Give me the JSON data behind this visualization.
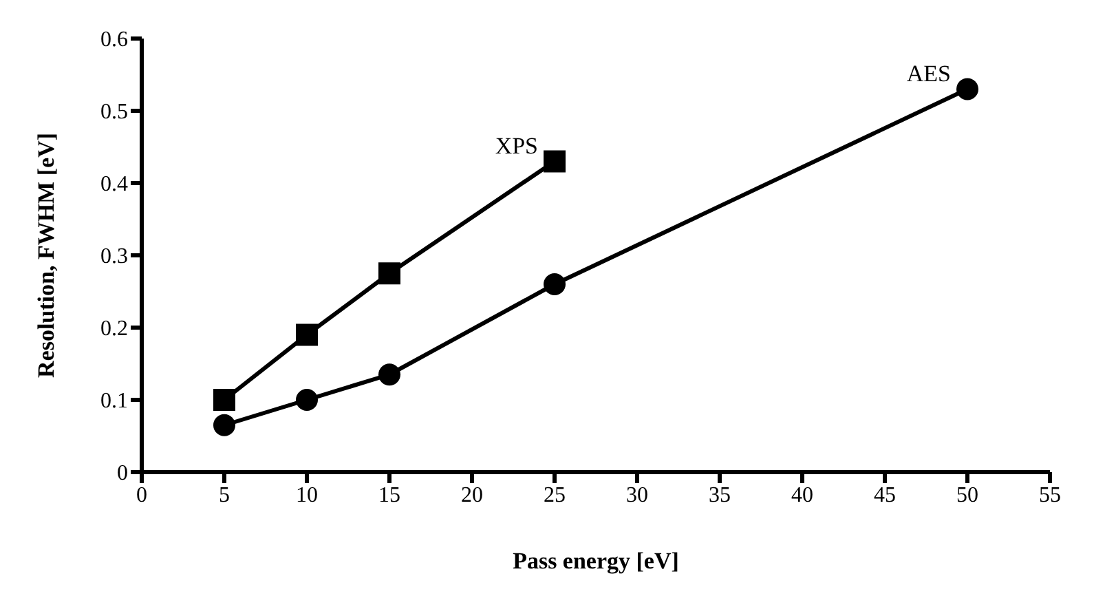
{
  "chart_data": {
    "type": "line",
    "xlabel": "Pass energy [eV]",
    "ylabel": "Resolution, FWHM [eV]",
    "xlim": [
      0,
      55
    ],
    "xticks": [
      0,
      5,
      10,
      15,
      20,
      25,
      30,
      35,
      40,
      45,
      50,
      55
    ],
    "ylim": [
      0,
      0.6
    ],
    "yticks": [
      0,
      0.1,
      0.2,
      0.3,
      0.4,
      0.5,
      0.6
    ],
    "grid": false,
    "legend": false,
    "series": [
      {
        "name": "XPS",
        "color": "#000000",
        "marker": "square",
        "x": [
          5,
          10,
          15,
          25
        ],
        "values": [
          0.1,
          0.19,
          0.275,
          0.43
        ]
      },
      {
        "name": "AES",
        "color": "#000000",
        "marker": "circle",
        "x": [
          5,
          10,
          15,
          25,
          50
        ],
        "values": [
          0.065,
          0.1,
          0.135,
          0.26,
          0.53
        ]
      }
    ]
  }
}
